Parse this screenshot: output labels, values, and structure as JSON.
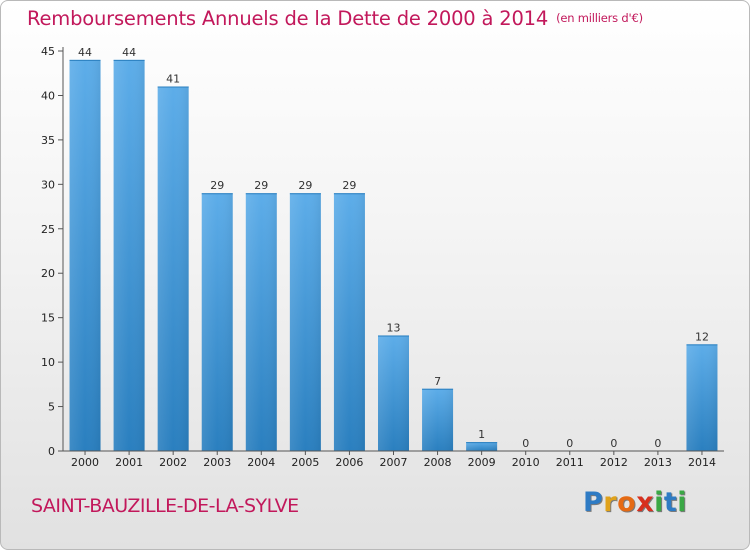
{
  "title": "Remboursements Annuels de la Dette de 2000 à 2014",
  "unit": "(en milliers d'€)",
  "commune": "SAINT-BAUZILLE-DE-LA-SYLVE",
  "brand": {
    "letters": [
      "P",
      "r",
      "o",
      "x",
      "i",
      "t",
      "i"
    ],
    "colors": [
      "#2e7bc4",
      "#e0a21b",
      "#e56a14",
      "#d7301f",
      "#3aa845",
      "#2e7bc4",
      "#3aa845"
    ]
  },
  "colors": {
    "bar_top": "#5dade9",
    "bar_bottom": "#2a7fbf",
    "title": "#c2185b"
  },
  "chart_data": {
    "type": "bar",
    "title": "Remboursements Annuels de la Dette de 2000 à 2014",
    "categories": [
      "2000",
      "2001",
      "2002",
      "2003",
      "2004",
      "2005",
      "2006",
      "2007",
      "2008",
      "2009",
      "2010",
      "2011",
      "2012",
      "2013",
      "2014"
    ],
    "values": [
      44,
      44,
      41,
      29,
      29,
      29,
      29,
      13,
      7,
      1,
      0,
      0,
      0,
      0,
      12
    ],
    "yticks": [
      0,
      5,
      10,
      15,
      20,
      25,
      30,
      35,
      40,
      45
    ],
    "ylim": [
      0,
      45
    ],
    "xlabel": "",
    "ylabel": "",
    "grid": false,
    "data_labels": true
  }
}
